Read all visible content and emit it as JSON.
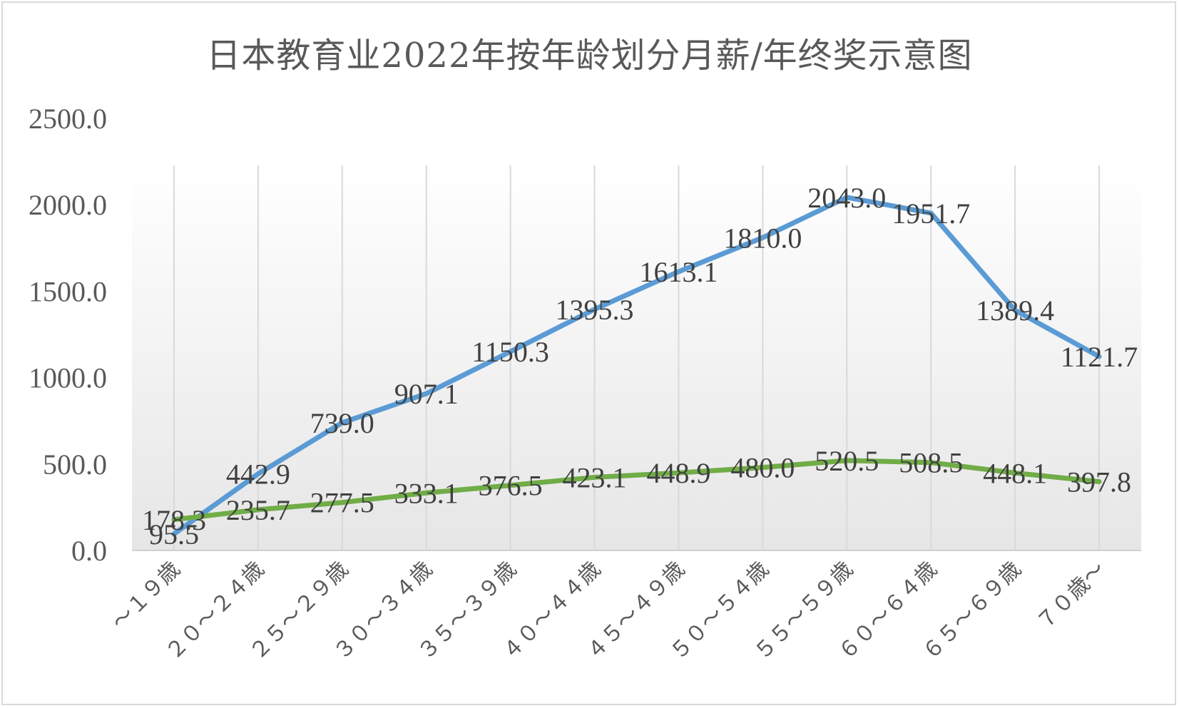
{
  "chart_data": {
    "type": "line",
    "title": "日本教育业2022年按年龄划分月薪/年终奖示意图",
    "xlabel": "",
    "ylabel": "",
    "ylim": [
      0,
      2500
    ],
    "yticks": [
      "0.0",
      "500.0",
      "1000.0",
      "1500.0",
      "2000.0",
      "2500.0"
    ],
    "grid": "vertical",
    "legend": "none",
    "categories": [
      "～１９歳",
      "２０～２４歳",
      "２５～２９歳",
      "３０～３４歳",
      "３５～３９歳",
      "４０～４４歳",
      "４５～４９歳",
      "５０～５４歳",
      "５５～５９歳",
      "６０～６４歳",
      "６５～６９歳",
      "７０歳～"
    ],
    "series": [
      {
        "color": "#5b9bd5",
        "values": [
          95.5,
          442.9,
          739.0,
          907.1,
          1150.3,
          1395.3,
          1613.1,
          1810.0,
          2043.0,
          1951.7,
          1389.4,
          1121.7
        ],
        "labels": [
          "95.5",
          "442.9",
          "739.0",
          "907.1",
          "1150.3",
          "1395.3",
          "1613.1",
          "1810.0",
          "2043.0",
          "1951.7",
          "1389.4",
          "1121.7"
        ]
      },
      {
        "color": "#70ad47",
        "values": [
          178.3,
          235.7,
          277.5,
          333.1,
          376.5,
          423.1,
          448.9,
          480.0,
          520.5,
          508.5,
          448.1,
          397.8
        ],
        "labels": [
          "178.3",
          "235.7",
          "277.5",
          "333.1",
          "376.5",
          "423.1",
          "448.9",
          "480.0",
          "520.5",
          "508.5",
          "448.1",
          "397.8"
        ]
      }
    ]
  }
}
